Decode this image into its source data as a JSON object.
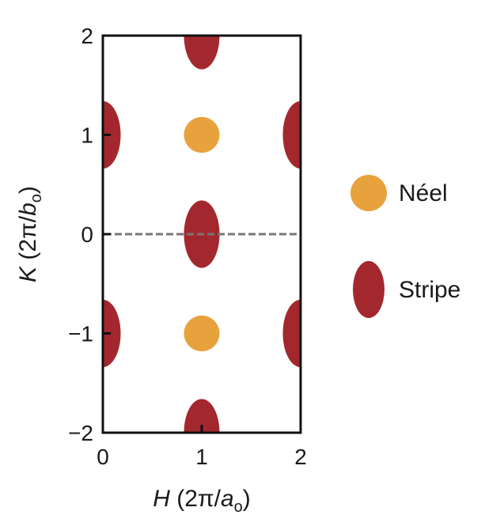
{
  "chart_data": {
    "type": "scatter",
    "xlim": [
      0,
      2
    ],
    "ylim": [
      -2,
      2
    ],
    "x_ticks": [
      "0",
      "1",
      "2"
    ],
    "y_ticks": [
      "2",
      "1",
      "0",
      "−1",
      "−2"
    ],
    "x_tick_values": [
      0,
      1,
      2
    ],
    "y_tick_values": [
      2,
      1,
      0,
      -1,
      -2
    ],
    "xlabel": {
      "var": "H",
      "pre": " (2π/",
      "sym": "a",
      "sub": "o",
      "post": ")"
    },
    "ylabel": {
      "var": "K",
      "pre": " (2π/",
      "sym": "b",
      "sub": "o",
      "post": ")"
    },
    "reference_line": {
      "y": 0,
      "style": "dashed",
      "color": "#777777"
    },
    "series": [
      {
        "name": "Néel",
        "color": "#E8A23D",
        "shape": "circle",
        "points": [
          {
            "x": 1,
            "y": 1
          },
          {
            "x": 1,
            "y": -1
          }
        ],
        "rx": 0.18,
        "ry": 0.18
      },
      {
        "name": "Stripe",
        "color": "#A3282E",
        "shape": "ellipse",
        "points": [
          {
            "x": 1,
            "y": 2
          },
          {
            "x": 1,
            "y": 0
          },
          {
            "x": 1,
            "y": -2
          },
          {
            "x": 0,
            "y": 1
          },
          {
            "x": 2,
            "y": 1
          },
          {
            "x": 0,
            "y": -1
          },
          {
            "x": 2,
            "y": -1
          }
        ],
        "rx": 0.18,
        "ry": 0.34
      }
    ],
    "legend_position": "right",
    "grid": false
  }
}
